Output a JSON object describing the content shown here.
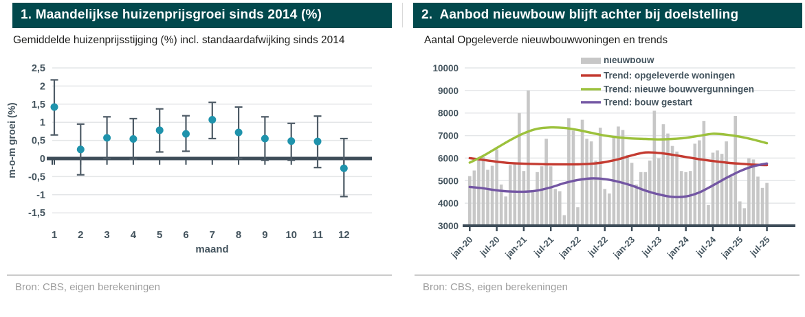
{
  "panels": {
    "left": {
      "title": "1. Maandelijkse huizenprijsgroei sinds 2014 (%)",
      "subtitle": "Gemiddelde huizenprijsstijging (%) incl. standaardafwijking sinds 2014",
      "source": "Bron: CBS, eigen berekeningen"
    },
    "right": {
      "title": "2.  Aanbod nieuwbouw blijft achter bij doelstelling",
      "subtitle": "Aantal Opgeleverde nieuwbouwwoningen en trends",
      "source": "Bron: CBS, eigen berekeningen"
    }
  },
  "colors": {
    "header_bg": "#02494d",
    "header_text": "#ffffff",
    "dot": "#1f93ac",
    "error_bar": "#4e5b66",
    "axis_line": "#3d4c58",
    "gridline": "#e4e6e8",
    "tick_text": "#44545e",
    "bar_fill": "#c7c7c7",
    "trend_red": "#c43b31",
    "trend_green": "#9cc13c",
    "trend_purple": "#7356a3",
    "source_text": "#9d9d9d"
  },
  "chart_data": [
    {
      "type": "scatter",
      "title": "Maandelijkse huizenprijsgroei sinds 2014 (%)",
      "xlabel": "maand",
      "ylabel": "m-o-m groei (%)",
      "x": [
        1,
        2,
        3,
        4,
        5,
        6,
        7,
        8,
        9,
        10,
        11,
        12
      ],
      "mean": [
        1.42,
        0.25,
        0.57,
        0.54,
        0.78,
        0.68,
        1.07,
        0.72,
        0.55,
        0.48,
        0.47,
        -0.27
      ],
      "err_low": [
        0.65,
        -0.45,
        0.0,
        -0.02,
        0.18,
        0.2,
        0.55,
        0.0,
        -0.05,
        -0.05,
        -0.25,
        -1.05
      ],
      "err_high": [
        2.17,
        0.95,
        1.15,
        1.1,
        1.37,
        1.18,
        1.55,
        1.42,
        1.15,
        0.97,
        1.17,
        0.55
      ],
      "ylim": [
        -1.5,
        2.5
      ],
      "yticks": [
        2.5,
        2,
        1.5,
        1,
        0.5,
        0,
        -0.5,
        -1,
        -1.5
      ],
      "ytick_labels": [
        "2,5",
        "2",
        "1,5",
        "1",
        "0,5",
        "0",
        "-0,5",
        "-1",
        "-1,5"
      ],
      "grid": true,
      "legend_position": "none"
    },
    {
      "type": "bar",
      "title": "Aanbod nieuwbouw blijft achter bij doelstelling",
      "xlabel": "",
      "ylabel": "",
      "ylim": [
        3000,
        10000
      ],
      "yticks": [
        3000,
        4000,
        5000,
        6000,
        7000,
        8000,
        9000,
        10000
      ],
      "grid": true,
      "legend_position": "top",
      "categories": [
        "jan-20",
        "feb-20",
        "mrt-20",
        "apr-20",
        "mei-20",
        "jun-20",
        "jul-20",
        "aug-20",
        "sep-20",
        "okt-20",
        "nov-20",
        "dec-20",
        "jan-21",
        "feb-21",
        "mrt-21",
        "apr-21",
        "mei-21",
        "jun-21",
        "jul-21",
        "aug-21",
        "sep-21",
        "okt-21",
        "nov-21",
        "dec-21",
        "jan-22",
        "feb-22",
        "mrt-22",
        "apr-22",
        "mei-22",
        "jun-22",
        "jul-22",
        "aug-22",
        "sep-22",
        "okt-22",
        "nov-22",
        "dec-22",
        "jan-23",
        "feb-23",
        "mrt-23",
        "apr-23",
        "mei-23",
        "jun-23",
        "jul-23",
        "aug-23",
        "sep-23",
        "okt-23",
        "nov-23",
        "dec-23",
        "jan-24",
        "feb-24",
        "mrt-24",
        "apr-24",
        "mei-24",
        "jun-24",
        "jul-24",
        "aug-24",
        "sep-24",
        "okt-24",
        "nov-24",
        "dec-24",
        "jan-25",
        "feb-25",
        "mrt-25",
        "apr-25",
        "mei-25",
        "jun-25",
        "jul-25"
      ],
      "xtick_labels": [
        "jan-20",
        "jul-20",
        "jan-21",
        "jul-21",
        "jan-22",
        "jul-22",
        "jan-23",
        "jul-23",
        "jan-24",
        "jul-24",
        "jan-25",
        "jul-25"
      ],
      "xtick_every": 6,
      "bar_series": {
        "name": "nieuwbouw",
        "values": [
          5200,
          5450,
          5950,
          6050,
          5480,
          5660,
          6390,
          4830,
          4300,
          5690,
          5740,
          8000,
          5430,
          9000,
          4580,
          5380,
          5640,
          6860,
          5640,
          4630,
          4530,
          3470,
          7770,
          7220,
          3820,
          7700,
          6860,
          6740,
          5890,
          7350,
          4630,
          4430,
          6940,
          7400,
          7250,
          6140,
          5790,
          4830,
          5380,
          5380,
          5890,
          8100,
          5990,
          7500,
          7090,
          6540,
          6290,
          5430,
          5380,
          5430,
          6640,
          6790,
          7650,
          3920,
          6240,
          6340,
          6190,
          6740,
          5180,
          7870,
          4080,
          3780,
          5990,
          5940,
          5180,
          4680,
          4900
        ]
      },
      "line_series": [
        {
          "name": "Trend: opgeleverde woningen",
          "color_key": "trend_red",
          "x_index": [
            0,
            3,
            6,
            9,
            12,
            15,
            18,
            21,
            24,
            27,
            30,
            33,
            36,
            39,
            42,
            45,
            48,
            51,
            54,
            57,
            60,
            63,
            66
          ],
          "values": [
            6000,
            5920,
            5840,
            5780,
            5750,
            5735,
            5725,
            5720,
            5725,
            5750,
            5820,
            5950,
            6120,
            6250,
            6230,
            6150,
            6050,
            5950,
            5870,
            5800,
            5750,
            5710,
            5690
          ]
        },
        {
          "name": "Trend: nieuwe bouwvergunningen",
          "color_key": "trend_green",
          "x_index": [
            0,
            3,
            6,
            9,
            12,
            15,
            18,
            21,
            24,
            27,
            30,
            33,
            36,
            39,
            42,
            45,
            48,
            51,
            54,
            57,
            60,
            63,
            66
          ],
          "values": [
            5800,
            6100,
            6450,
            6800,
            7100,
            7300,
            7360,
            7340,
            7250,
            7120,
            7000,
            6920,
            6870,
            6850,
            6830,
            6850,
            6900,
            6990,
            7080,
            7040,
            6950,
            6820,
            6660
          ]
        },
        {
          "name": "Trend: bouw gestart",
          "color_key": "trend_purple",
          "x_index": [
            0,
            3,
            6,
            9,
            12,
            15,
            18,
            21,
            24,
            27,
            30,
            33,
            36,
            39,
            42,
            45,
            48,
            51,
            54,
            57,
            60,
            63,
            66
          ],
          "values": [
            4720,
            4660,
            4570,
            4520,
            4510,
            4560,
            4700,
            4890,
            5030,
            5100,
            5070,
            4950,
            4780,
            4560,
            4390,
            4280,
            4300,
            4480,
            4790,
            5120,
            5420,
            5640,
            5760
          ]
        }
      ]
    }
  ]
}
